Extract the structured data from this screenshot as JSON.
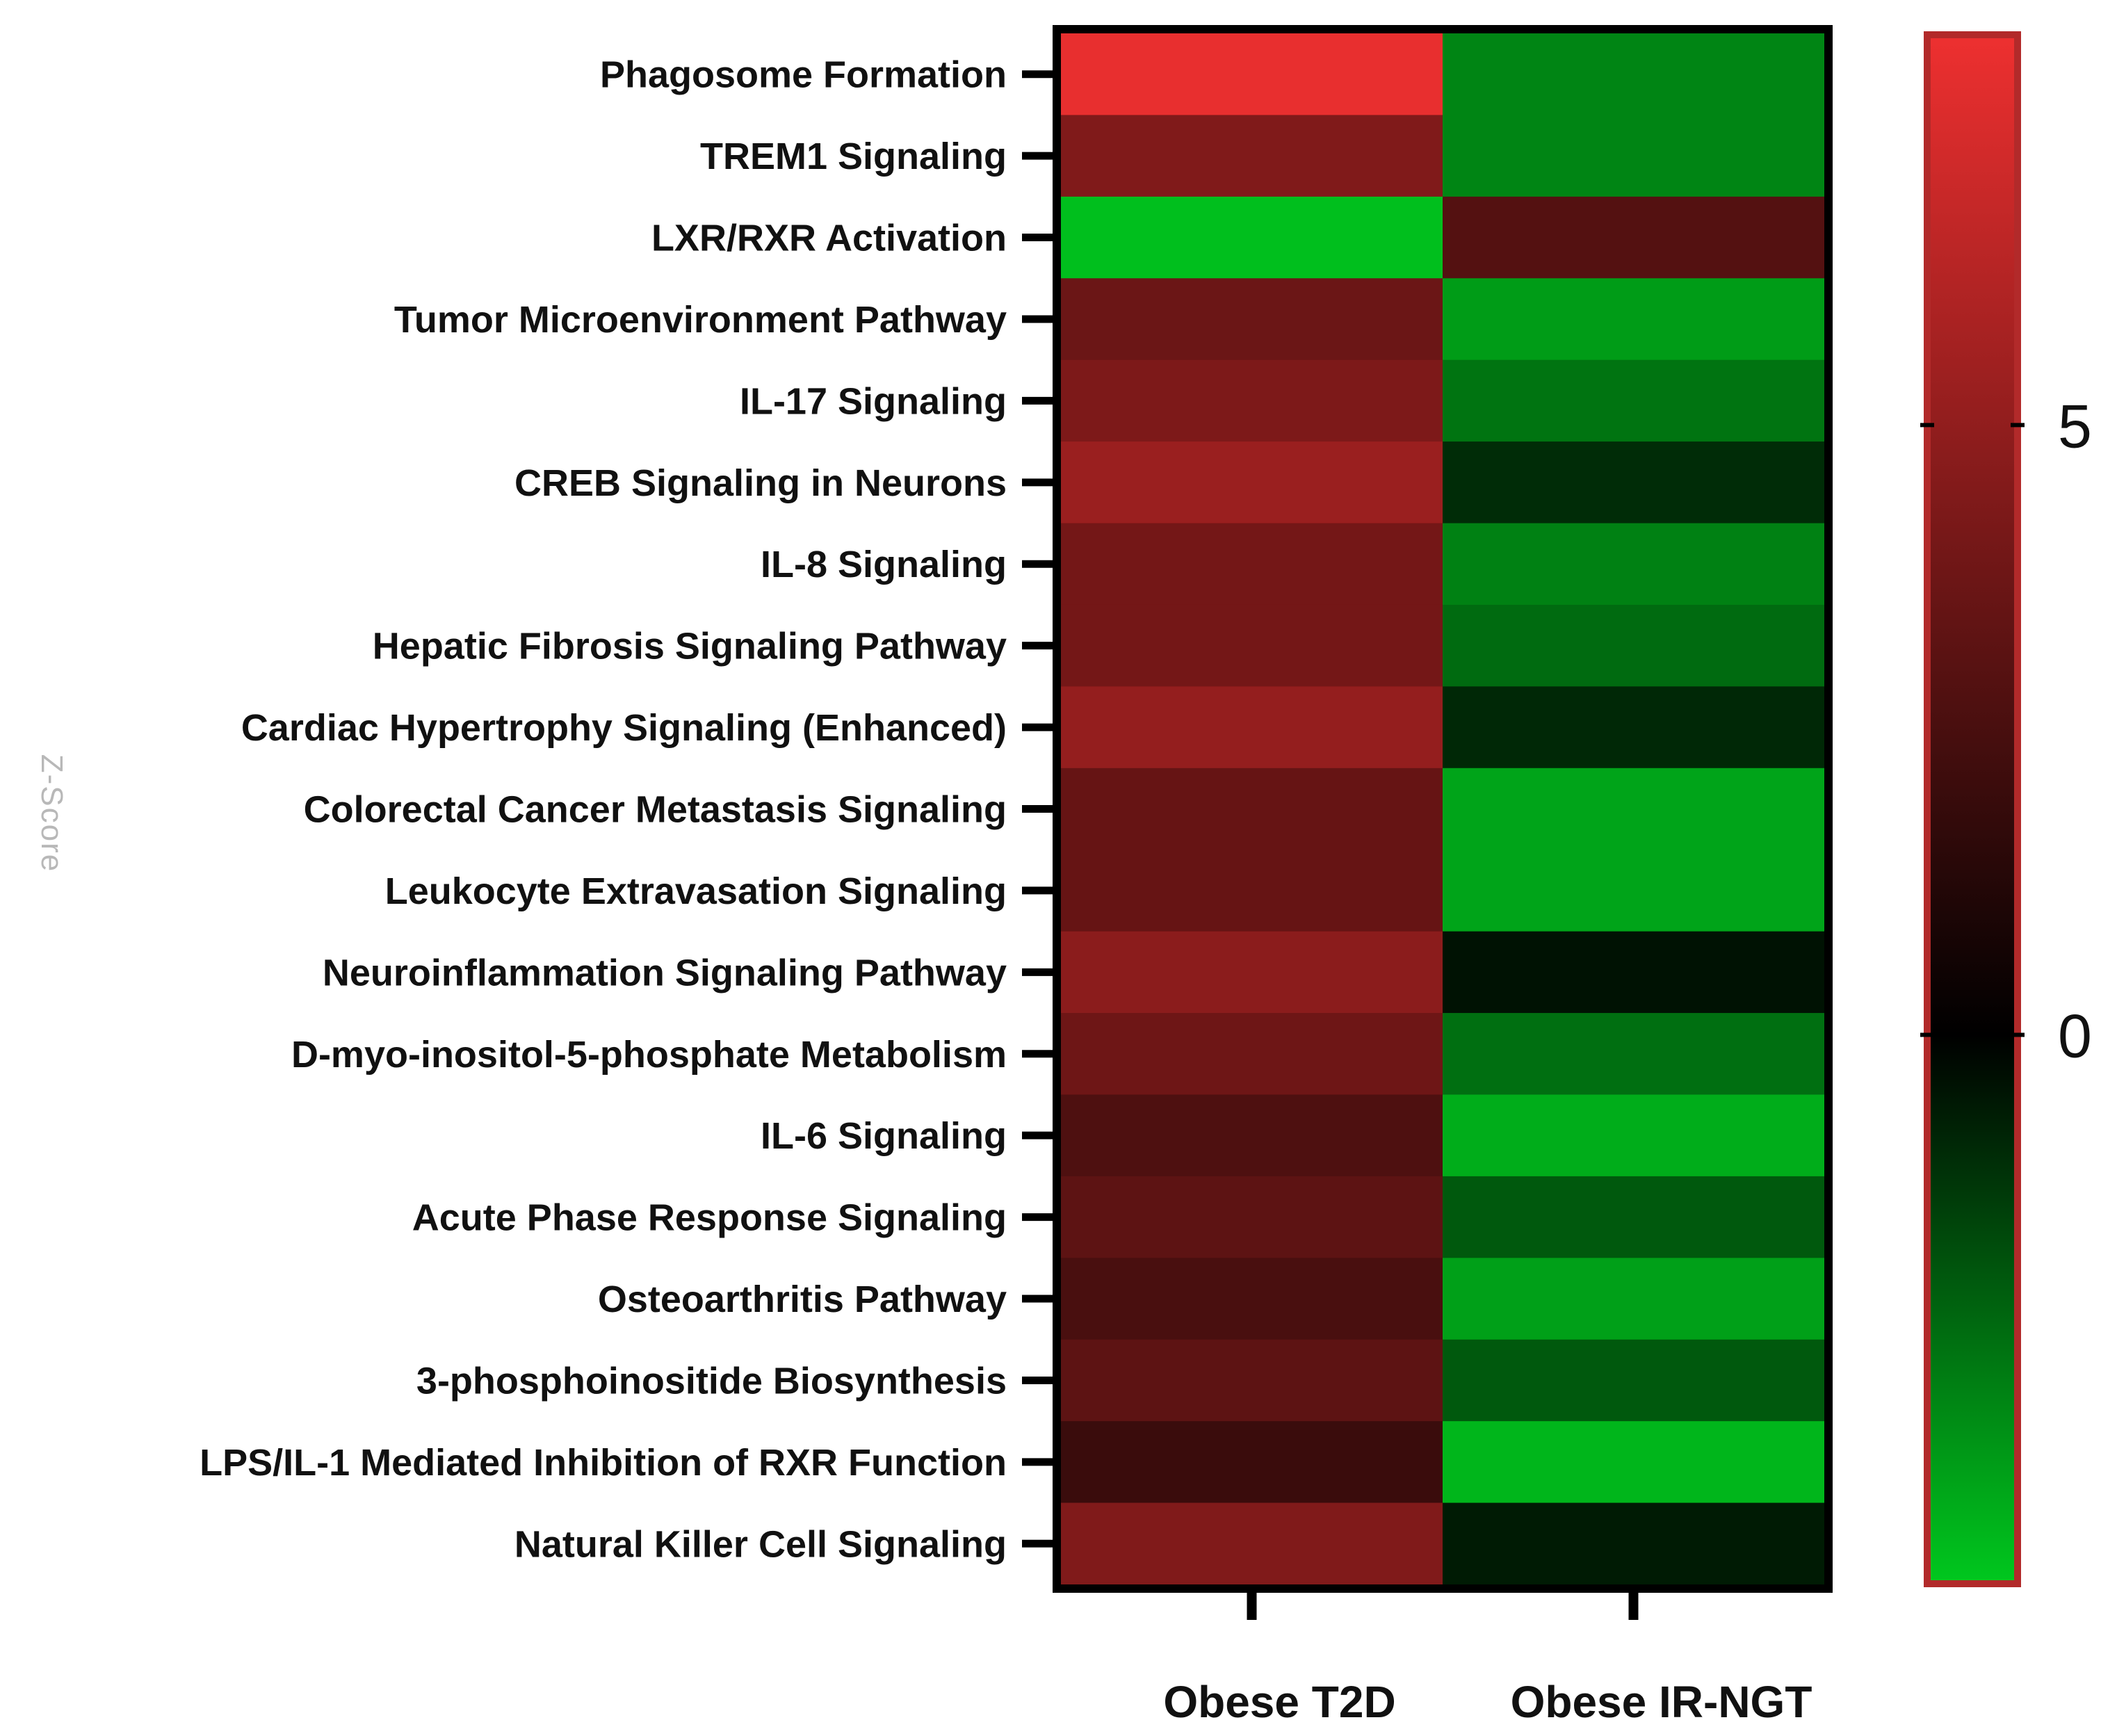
{
  "chart_data": {
    "type": "heatmap",
    "rows": [
      "Phagosome Formation",
      "TREM1 Signaling",
      "LXR/RXR Activation",
      "Tumor Microenvironment Pathway",
      "IL-17 Signaling",
      "CREB Signaling in Neurons",
      "IL-8 Signaling",
      "Hepatic Fibrosis Signaling Pathway",
      "Cardiac Hypertrophy Signaling (Enhanced)",
      "Colorectal Cancer Metastasis Signaling",
      "Leukocyte Extravasation Signaling",
      "Neuroinflammation Signaling Pathway",
      "D-myo-inositol-5-phosphate Metabolism",
      "IL-6 Signaling",
      "Acute Phase Response Signaling",
      "Osteoarthritis Pathway",
      "3-phosphoinositide Biosynthesis",
      "LPS/IL-1 Mediated Inhibition of RXR Function",
      "Natural Killer Cell Signaling"
    ],
    "columns": [
      "Obese T2D",
      "Obese IR-NGT"
    ],
    "values": [
      [
        8.0,
        -3.0
      ],
      [
        4.4,
        -3.0
      ],
      [
        -4.3,
        2.9
      ],
      [
        3.7,
        -3.5
      ],
      [
        4.3,
        -2.6
      ],
      [
        5.3,
        -1.0
      ],
      [
        4.0,
        -2.9
      ],
      [
        4.0,
        -2.4
      ],
      [
        5.1,
        -0.9
      ],
      [
        3.5,
        -3.7
      ],
      [
        3.5,
        -3.7
      ],
      [
        4.8,
        -0.4
      ],
      [
        3.8,
        -2.5
      ],
      [
        2.7,
        -3.9
      ],
      [
        3.2,
        -2.0
      ],
      [
        2.5,
        -3.6
      ],
      [
        3.2,
        -2.0
      ],
      [
        2.0,
        -4.1
      ],
      [
        4.4,
        -0.6
      ]
    ],
    "colorbar": {
      "label": "Z-Score",
      "min": -4.5,
      "max": 8.2,
      "ticks": [
        0,
        5
      ],
      "colors": {
        "low": "#00c81e",
        "mid": "#000000",
        "high": "#ee3030"
      }
    },
    "grid": false
  }
}
